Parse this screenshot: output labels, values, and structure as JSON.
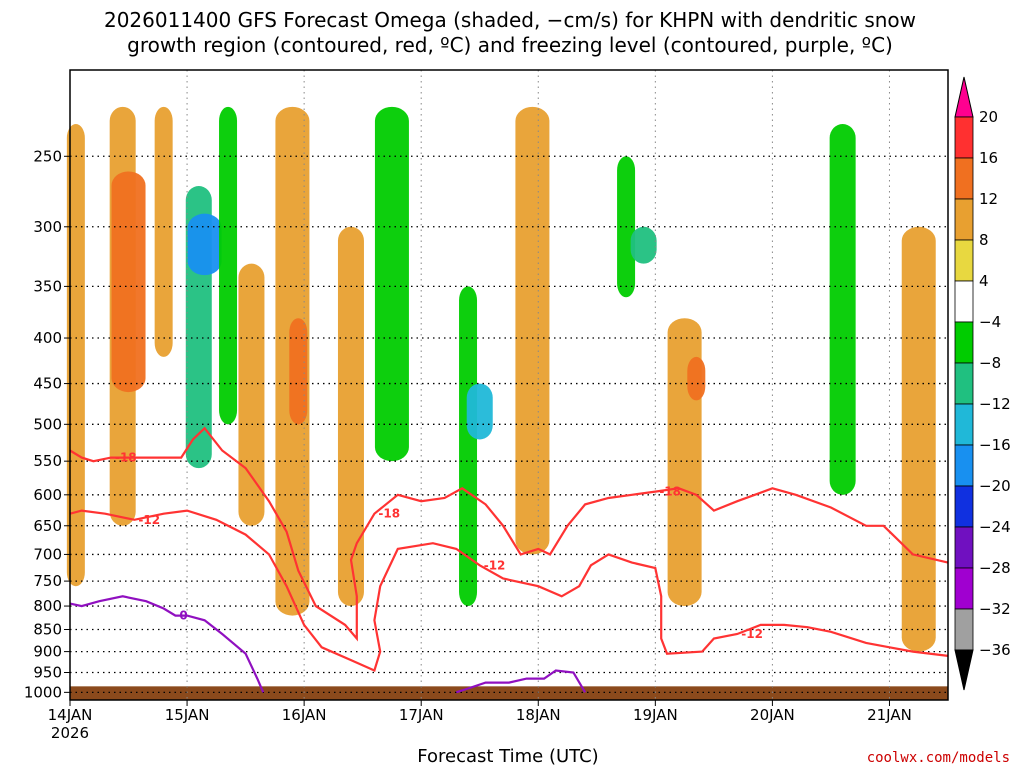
{
  "chart_data": {
    "type": "heatmap",
    "title_lines": [
      "2026011400 GFS Forecast Omega (shaded, −cm/s) for KHPN with dendritic snow",
      "growth region (contoured, red, ºC) and freezing level (contoured, purple, ºC)"
    ],
    "xlabel": "Forecast Time (UTC)",
    "credit": "coolwx.com/models",
    "x_ticks": [
      {
        "day": 0,
        "label": "14JAN",
        "sub": "2026"
      },
      {
        "day": 1,
        "label": "15JAN",
        "sub": ""
      },
      {
        "day": 2,
        "label": "16JAN",
        "sub": ""
      },
      {
        "day": 3,
        "label": "17JAN",
        "sub": ""
      },
      {
        "day": 4,
        "label": "18JAN",
        "sub": ""
      },
      {
        "day": 5,
        "label": "19JAN",
        "sub": ""
      },
      {
        "day": 6,
        "label": "20JAN",
        "sub": ""
      },
      {
        "day": 7,
        "label": "21JAN",
        "sub": ""
      }
    ],
    "xlim_days": [
      0,
      7.5
    ],
    "y_ticks": [
      250,
      300,
      350,
      400,
      450,
      500,
      550,
      600,
      650,
      700,
      750,
      800,
      850,
      900,
      950,
      1000
    ],
    "ylim_hpa": [
      200,
      1020
    ],
    "y_scale": "log-pressure (inverted)",
    "grid": true,
    "colorbar": {
      "levels": [
        20,
        16,
        12,
        8,
        4,
        -4,
        -8,
        -12,
        -16,
        -20,
        -24,
        -28,
        -32,
        -36
      ],
      "colors": [
        "#ff0090",
        "#ff3030",
        "#f07020",
        "#e8a030",
        "#e8d840",
        "#ffffff",
        "#00cc00",
        "#20c080",
        "#20b8d8",
        "#1890f0",
        "#1030e0",
        "#7010c0",
        "#a000d0",
        "#a0a0a0",
        "#000000"
      ]
    },
    "contours": {
      "dendritic_red": [
        {
          "label": "-18",
          "points": [
            [
              0,
              535
            ],
            [
              0.1,
              545
            ],
            [
              0.2,
              550
            ],
            [
              0.35,
              545
            ],
            [
              0.55,
              545
            ],
            [
              0.75,
              545
            ],
            [
              0.95,
              545
            ],
            [
              1.05,
              520
            ],
            [
              1.15,
              505
            ],
            [
              1.3,
              535
            ],
            [
              1.5,
              560
            ],
            [
              1.7,
              610
            ],
            [
              1.85,
              660
            ],
            [
              1.95,
              730
            ],
            [
              2.1,
              800
            ],
            [
              2.35,
              840
            ],
            [
              2.45,
              870
            ],
            [
              2.45,
              780
            ],
            [
              2.4,
              710
            ],
            [
              2.45,
              680
            ],
            [
              2.6,
              630
            ],
            [
              2.8,
              600
            ],
            [
              3.0,
              610
            ],
            [
              3.2,
              605
            ],
            [
              3.35,
              590
            ],
            [
              3.55,
              615
            ],
            [
              3.7,
              650
            ],
            [
              3.85,
              700
            ],
            [
              4.0,
              690
            ],
            [
              4.1,
              700
            ],
            [
              4.25,
              650
            ],
            [
              4.4,
              615
            ],
            [
              4.6,
              605
            ],
            [
              4.8,
              600
            ],
            [
              5.0,
              595
            ],
            [
              5.2,
              590
            ],
            [
              5.35,
              600
            ],
            [
              5.5,
              625
            ],
            [
              5.7,
              610
            ],
            [
              5.85,
              600
            ],
            [
              6.0,
              590
            ],
            [
              6.2,
              600
            ],
            [
              6.5,
              620
            ],
            [
              6.8,
              650
            ],
            [
              6.95,
              650
            ],
            [
              7.2,
              700
            ],
            [
              7.5,
              715
            ]
          ]
        },
        {
          "label": "-12",
          "points": [
            [
              0,
              630
            ],
            [
              0.1,
              625
            ],
            [
              0.3,
              630
            ],
            [
              0.55,
              640
            ],
            [
              0.8,
              630
            ],
            [
              1.0,
              625
            ],
            [
              1.25,
              640
            ],
            [
              1.5,
              665
            ],
            [
              1.7,
              700
            ],
            [
              1.85,
              760
            ],
            [
              2.0,
              840
            ],
            [
              2.15,
              890
            ],
            [
              2.4,
              920
            ],
            [
              2.6,
              945
            ],
            [
              2.65,
              900
            ],
            [
              2.6,
              830
            ],
            [
              2.65,
              760
            ],
            [
              2.8,
              690
            ],
            [
              3.1,
              680
            ],
            [
              3.3,
              690
            ],
            [
              3.5,
              720
            ],
            [
              3.7,
              745
            ],
            [
              4.0,
              760
            ],
            [
              4.2,
              780
            ],
            [
              4.35,
              760
            ],
            [
              4.45,
              720
            ],
            [
              4.6,
              700
            ],
            [
              4.8,
              715
            ],
            [
              5.0,
              725
            ],
            [
              5.05,
              780
            ],
            [
              5.05,
              870
            ],
            [
              5.1,
              905
            ],
            [
              5.4,
              900
            ],
            [
              5.5,
              870
            ],
            [
              5.7,
              860
            ],
            [
              5.9,
              840
            ],
            [
              6.1,
              840
            ],
            [
              6.3,
              845
            ],
            [
              6.5,
              855
            ],
            [
              6.8,
              880
            ],
            [
              7.0,
              890
            ],
            [
              7.2,
              900
            ],
            [
              7.5,
              910
            ]
          ]
        }
      ],
      "freezing_purple": [
        {
          "label": "0",
          "points": [
            [
              0,
              795
            ],
            [
              0.1,
              800
            ],
            [
              0.25,
              790
            ],
            [
              0.45,
              780
            ],
            [
              0.65,
              790
            ],
            [
              0.8,
              805
            ],
            [
              0.9,
              820
            ],
            [
              1.0,
              820
            ],
            [
              1.15,
              830
            ],
            [
              1.3,
              860
            ],
            [
              1.5,
              905
            ],
            [
              1.6,
              965
            ],
            [
              1.65,
              1000
            ]
          ]
        },
        {
          "label": "",
          "points": [
            [
              3.3,
              1000
            ],
            [
              3.4,
              990
            ],
            [
              3.55,
              975
            ],
            [
              3.75,
              975
            ],
            [
              3.9,
              965
            ],
            [
              4.05,
              965
            ],
            [
              4.15,
              945
            ],
            [
              4.3,
              950
            ],
            [
              4.4,
              1000
            ]
          ]
        }
      ]
    },
    "omega_field": {
      "note": "shaded regions represent approximate omega categories (cm/s)",
      "cells": [
        {
          "day": 0.05,
          "p0": 230,
          "p1": 760,
          "v": 8
        },
        {
          "day": 0.45,
          "p0": 220,
          "p1": 650,
          "v": 8
        },
        {
          "day": 0.5,
          "p0": 260,
          "p1": 460,
          "v": 12
        },
        {
          "day": 0.8,
          "p0": 220,
          "p1": 420,
          "v": 8
        },
        {
          "day": 1.1,
          "p0": 270,
          "p1": 560,
          "v": -12
        },
        {
          "day": 1.15,
          "p0": 290,
          "p1": 340,
          "v": -20
        },
        {
          "day": 1.35,
          "p0": 220,
          "p1": 500,
          "v": -8
        },
        {
          "day": 1.55,
          "p0": 330,
          "p1": 650,
          "v": 8
        },
        {
          "day": 1.9,
          "p0": 220,
          "p1": 820,
          "v": 8
        },
        {
          "day": 1.95,
          "p0": 380,
          "p1": 500,
          "v": 12
        },
        {
          "day": 2.4,
          "p0": 300,
          "p1": 800,
          "v": 8
        },
        {
          "day": 2.75,
          "p0": 220,
          "p1": 550,
          "v": -8
        },
        {
          "day": 3.4,
          "p0": 350,
          "p1": 800,
          "v": -8
        },
        {
          "day": 3.5,
          "p0": 450,
          "p1": 520,
          "v": -16
        },
        {
          "day": 3.95,
          "p0": 220,
          "p1": 700,
          "v": 8
        },
        {
          "day": 4.75,
          "p0": 250,
          "p1": 360,
          "v": -8
        },
        {
          "day": 4.9,
          "p0": 300,
          "p1": 330,
          "v": -12
        },
        {
          "day": 5.25,
          "p0": 380,
          "p1": 800,
          "v": 8
        },
        {
          "day": 5.35,
          "p0": 420,
          "p1": 470,
          "v": 12
        },
        {
          "day": 6.6,
          "p0": 230,
          "p1": 600,
          "v": -8
        },
        {
          "day": 7.25,
          "p0": 300,
          "p1": 900,
          "v": 8
        }
      ]
    }
  }
}
